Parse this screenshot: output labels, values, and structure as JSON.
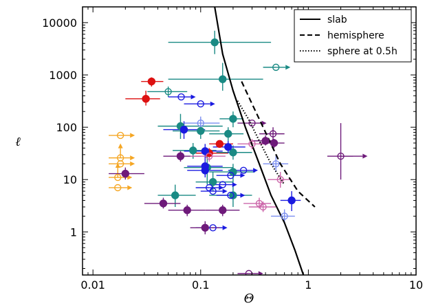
{
  "chart_data": {
    "type": "scatter",
    "xlabel": "Θ",
    "ylabel": "ℓ",
    "xscale": "log",
    "yscale": "log",
    "xlim": [
      0.008,
      10
    ],
    "ylim": [
      0.15,
      20000
    ],
    "xticks": [
      {
        "v": 0.01,
        "label": "0.01"
      },
      {
        "v": 0.1,
        "label": "0.1"
      },
      {
        "v": 1,
        "label": "1"
      },
      {
        "v": 10,
        "label": "10"
      }
    ],
    "yticks": [
      {
        "v": 1,
        "label": "1"
      },
      {
        "v": 10,
        "label": "10"
      },
      {
        "v": 100,
        "label": "100"
      },
      {
        "v": 1000,
        "label": "1000"
      },
      {
        "v": 10000,
        "label": "10000"
      }
    ],
    "grid": false,
    "legend_position": "top-right",
    "colors": {
      "red": "#dd1111",
      "orange": "#f5a623",
      "teal": "#1a8a84",
      "blue": "#1a1ae0",
      "purple": "#6e1a7a",
      "pink": "#cc66aa",
      "lightblue": "#7a8ef0"
    },
    "models": [
      {
        "name": "slab",
        "dash": "solid",
        "x": [
          0.135,
          0.16,
          0.2,
          0.26,
          0.35,
          0.45,
          0.6,
          0.75,
          0.9
        ],
        "y": [
          20000,
          2500,
          500,
          100,
          20,
          5,
          1.5,
          0.45,
          0.15
        ]
      },
      {
        "name": "hemisphere",
        "dash": "dashed",
        "x": [
          0.24,
          0.3,
          0.4,
          0.55,
          0.8,
          1.15
        ],
        "y": [
          750,
          280,
          80,
          20,
          6,
          3
        ]
      },
      {
        "name": "sphere at 0.5h",
        "dash": "dotted",
        "x": [
          0.22,
          0.28,
          0.35,
          0.45,
          0.6
        ],
        "y": [
          320,
          140,
          55,
          20,
          8
        ]
      }
    ],
    "points": [
      {
        "x": 0.035,
        "y": 750,
        "c": "red",
        "f": true,
        "x0": 0.028,
        "x1": 0.045,
        "y0": 600,
        "y1": 900
      },
      {
        "x": 0.031,
        "y": 350,
        "c": "red",
        "f": true,
        "x0": 0.02,
        "x1": 0.042,
        "y0": 260,
        "y1": 500
      },
      {
        "x": 0.12,
        "y": 32,
        "c": "red",
        "f": true,
        "x0": 0.09,
        "x1": 0.18,
        "y0": 26,
        "y1": 40
      },
      {
        "x": 0.15,
        "y": 48,
        "c": "red",
        "f": true,
        "x0": 0.12,
        "x1": 0.2,
        "y0": 42,
        "y1": 55
      },
      {
        "x": 0.018,
        "y": 70,
        "c": "orange",
        "f": false,
        "x0": 0.014,
        "x1": 0.018,
        "y0": 70,
        "y1": 70,
        "arrow": "right"
      },
      {
        "x": 0.018,
        "y": 26,
        "c": "orange",
        "f": false,
        "x0": 0.014,
        "x1": 0.018,
        "y0": 26,
        "y1": 26,
        "arrow": "right",
        "arrow2": "up"
      },
      {
        "x": 0.018,
        "y": 20,
        "c": "orange",
        "f": false,
        "x0": 0.014,
        "x1": 0.018,
        "y0": 20,
        "y1": 20,
        "arrow": "right"
      },
      {
        "x": 0.017,
        "y": 11,
        "c": "orange",
        "f": false,
        "x0": 0.014,
        "x1": 0.017,
        "y0": 11,
        "y1": 11,
        "arrow": "right",
        "arrow2": "up"
      },
      {
        "x": 0.017,
        "y": 7,
        "c": "orange",
        "f": false,
        "x0": 0.014,
        "x1": 0.017,
        "y0": 7,
        "y1": 7,
        "arrow": "right"
      },
      {
        "x": 0.135,
        "y": 4200,
        "c": "teal",
        "f": true,
        "x0": 0.05,
        "x1": 0.45,
        "y0": 2500,
        "y1": 7000
      },
      {
        "x": 0.16,
        "y": 830,
        "c": "teal",
        "f": true,
        "x0": 0.05,
        "x1": 0.38,
        "y0": 500,
        "y1": 1700
      },
      {
        "x": 0.05,
        "y": 480,
        "c": "teal",
        "f": false,
        "x0": 0.032,
        "x1": 0.075,
        "y0": 380,
        "y1": 600
      },
      {
        "x": 0.2,
        "y": 145,
        "c": "teal",
        "f": true,
        "x0": 0.15,
        "x1": 0.25,
        "y0": 100,
        "y1": 200
      },
      {
        "x": 0.065,
        "y": 105,
        "c": "teal",
        "f": true,
        "x0": 0.04,
        "x1": 0.16,
        "y0": 60,
        "y1": 180
      },
      {
        "x": 0.1,
        "y": 85,
        "c": "teal",
        "f": true,
        "x0": 0.055,
        "x1": 0.15,
        "y0": 60,
        "y1": 120
      },
      {
        "x": 0.18,
        "y": 75,
        "c": "teal",
        "f": true,
        "x0": 0.12,
        "x1": 0.25,
        "y0": 55,
        "y1": 100
      },
      {
        "x": 0.085,
        "y": 36,
        "c": "teal",
        "f": true,
        "x0": 0.055,
        "x1": 0.14,
        "y0": 25,
        "y1": 50
      },
      {
        "x": 0.2,
        "y": 33,
        "c": "teal",
        "f": true,
        "x0": 0.14,
        "x1": 0.3,
        "y0": 24,
        "y1": 45
      },
      {
        "x": 0.115,
        "y": 17,
        "c": "teal",
        "f": true,
        "x0": 0.07,
        "x1": 0.2,
        "y0": 8,
        "y1": 30
      },
      {
        "x": 0.2,
        "y": 14,
        "c": "teal",
        "f": true,
        "x0": 0.12,
        "x1": 0.32,
        "y0": 9,
        "y1": 20
      },
      {
        "x": 0.13,
        "y": 9,
        "c": "teal",
        "f": true,
        "x0": 0.09,
        "x1": 0.2,
        "y0": 6,
        "y1": 14
      },
      {
        "x": 0.058,
        "y": 5,
        "c": "teal",
        "f": true,
        "x0": 0.04,
        "x1": 0.09,
        "y0": 3,
        "y1": 8
      },
      {
        "x": 0.2,
        "y": 5,
        "c": "teal",
        "f": true,
        "x0": 0.12,
        "x1": 0.3,
        "y0": 3,
        "y1": 9
      },
      {
        "x": 0.5,
        "y": 1400,
        "c": "teal",
        "f": false,
        "x0": 0.38,
        "x1": 0.5,
        "y0": 1400,
        "y1": 1400,
        "arrow": "right"
      },
      {
        "x": 0.066,
        "y": 380,
        "c": "blue",
        "f": false,
        "x0": 0.05,
        "x1": 0.066,
        "y0": 380,
        "y1": 380,
        "arrow": "right"
      },
      {
        "x": 0.1,
        "y": 280,
        "c": "blue",
        "f": false,
        "x0": 0.07,
        "x1": 0.1,
        "y0": 280,
        "y1": 280,
        "arrow": "right"
      },
      {
        "x": 0.07,
        "y": 90,
        "c": "blue",
        "f": true,
        "x0": 0.045,
        "x1": 0.11,
        "y0": 60,
        "y1": 130
      },
      {
        "x": 0.18,
        "y": 42,
        "c": "blue",
        "f": true,
        "x0": 0.13,
        "x1": 0.26,
        "y0": 32,
        "y1": 55
      },
      {
        "x": 0.11,
        "y": 35,
        "c": "blue",
        "f": true,
        "x0": 0.07,
        "x1": 0.16,
        "y0": 25,
        "y1": 48
      },
      {
        "x": 0.11,
        "y": 18,
        "c": "blue",
        "f": true,
        "x0": 0.075,
        "x1": 0.16,
        "y0": 12,
        "y1": 25
      },
      {
        "x": 0.11,
        "y": 15,
        "c": "blue",
        "f": true,
        "x0": 0.075,
        "x1": 0.16,
        "y0": 11,
        "y1": 21
      },
      {
        "x": 0.7,
        "y": 4,
        "c": "blue",
        "f": true,
        "x0": 0.55,
        "x1": 0.85,
        "y0": 2.5,
        "y1": 6
      },
      {
        "x": 0.25,
        "y": 15,
        "c": "blue",
        "f": false,
        "x0": 0.18,
        "x1": 0.25,
        "y0": 15,
        "y1": 15,
        "arrow": "right"
      },
      {
        "x": 0.19,
        "y": 12,
        "c": "blue",
        "f": false,
        "x0": 0.14,
        "x1": 0.19,
        "y0": 12,
        "y1": 12,
        "arrow": "right"
      },
      {
        "x": 0.16,
        "y": 8,
        "c": "blue",
        "f": false,
        "x0": 0.12,
        "x1": 0.16,
        "y0": 8,
        "y1": 8,
        "arrow": "right"
      },
      {
        "x": 0.12,
        "y": 7,
        "c": "blue",
        "f": false,
        "x0": 0.09,
        "x1": 0.12,
        "y0": 7,
        "y1": 7,
        "arrow": "right"
      },
      {
        "x": 0.13,
        "y": 6,
        "c": "blue",
        "f": false,
        "x0": 0.1,
        "x1": 0.13,
        "y0": 6,
        "y1": 6,
        "arrow": "right"
      },
      {
        "x": 0.19,
        "y": 5,
        "c": "blue",
        "f": false,
        "x0": 0.14,
        "x1": 0.19,
        "y0": 5,
        "y1": 5,
        "arrow": "right"
      },
      {
        "x": 0.13,
        "y": 1.2,
        "c": "blue",
        "f": false,
        "x0": 0.09,
        "x1": 0.13,
        "y0": 1.2,
        "y1": 1.2,
        "arrow": "right"
      },
      {
        "x": 0.48,
        "y": 50,
        "c": "purple",
        "f": true,
        "x0": 0.35,
        "x1": 0.6,
        "y0": 40,
        "y1": 60
      },
      {
        "x": 0.4,
        "y": 55,
        "c": "purple",
        "f": true,
        "x0": 0.3,
        "x1": 0.5,
        "y0": 45,
        "y1": 70
      },
      {
        "x": 0.47,
        "y": 75,
        "c": "purple",
        "f": false,
        "x0": 0.35,
        "x1": 0.6,
        "y0": 55,
        "y1": 100
      },
      {
        "x": 0.065,
        "y": 28,
        "c": "purple",
        "f": true,
        "x0": 0.045,
        "x1": 0.1,
        "y0": 22,
        "y1": 35
      },
      {
        "x": 0.02,
        "y": 13,
        "c": "purple",
        "f": true,
        "x0": 0.014,
        "x1": 0.03,
        "y0": 10,
        "y1": 17
      },
      {
        "x": 0.045,
        "y": 3.5,
        "c": "purple",
        "f": true,
        "x0": 0.03,
        "x1": 0.065,
        "y0": 2.8,
        "y1": 4.5
      },
      {
        "x": 0.075,
        "y": 2.6,
        "c": "purple",
        "f": true,
        "x0": 0.05,
        "x1": 0.11,
        "y0": 2,
        "y1": 3.3
      },
      {
        "x": 0.16,
        "y": 2.6,
        "c": "purple",
        "f": true,
        "x0": 0.11,
        "x1": 0.23,
        "y0": 2,
        "y1": 3.3
      },
      {
        "x": 0.11,
        "y": 1.2,
        "c": "purple",
        "f": true,
        "x0": 0.08,
        "x1": 0.15,
        "y0": 0.9,
        "y1": 1.6
      },
      {
        "x": 0.3,
        "y": 120,
        "c": "purple",
        "f": false,
        "x0": 0.22,
        "x1": 0.3,
        "y0": 120,
        "y1": 120,
        "arrow": "right"
      },
      {
        "x": 2,
        "y": 28,
        "c": "purple",
        "f": false,
        "x0": 1.5,
        "x1": 2.6,
        "y0": 10,
        "y1": 120,
        "arrow": "right"
      },
      {
        "x": 0.28,
        "y": 0.16,
        "c": "purple",
        "f": false,
        "x0": 0.22,
        "x1": 0.28,
        "y0": 0.16,
        "y1": 0.16,
        "arrow": "right"
      },
      {
        "x": 0.35,
        "y": 3.5,
        "c": "pink",
        "f": false,
        "x0": 0.25,
        "x1": 0.45,
        "y0": 2.8,
        "y1": 4.5
      },
      {
        "x": 0.38,
        "y": 3,
        "c": "pink",
        "f": false,
        "x0": 0.28,
        "x1": 0.5,
        "y0": 2.4,
        "y1": 3.8
      },
      {
        "x": 0.55,
        "y": 10,
        "c": "pink",
        "f": false,
        "x0": 0.42,
        "x1": 0.7,
        "y0": 7,
        "y1": 14
      },
      {
        "x": 0.3,
        "y": 48,
        "c": "pink",
        "f": false,
        "x0": 0.22,
        "x1": 0.4,
        "y0": 38,
        "y1": 60
      },
      {
        "x": 0.12,
        "y": 28,
        "c": "pink",
        "f": false,
        "x0": 0.08,
        "x1": 0.17,
        "y0": 22,
        "y1": 35
      },
      {
        "x": 0.1,
        "y": 120,
        "c": "lightblue",
        "f": false,
        "x0": 0.07,
        "x1": 0.15,
        "y0": 90,
        "y1": 160
      },
      {
        "x": 0.5,
        "y": 20,
        "c": "lightblue",
        "f": false,
        "x0": 0.38,
        "x1": 0.65,
        "y0": 14,
        "y1": 28
      },
      {
        "x": 0.6,
        "y": 2,
        "c": "lightblue",
        "f": false,
        "x0": 0.45,
        "x1": 0.75,
        "y0": 1.5,
        "y1": 2.7
      }
    ]
  }
}
